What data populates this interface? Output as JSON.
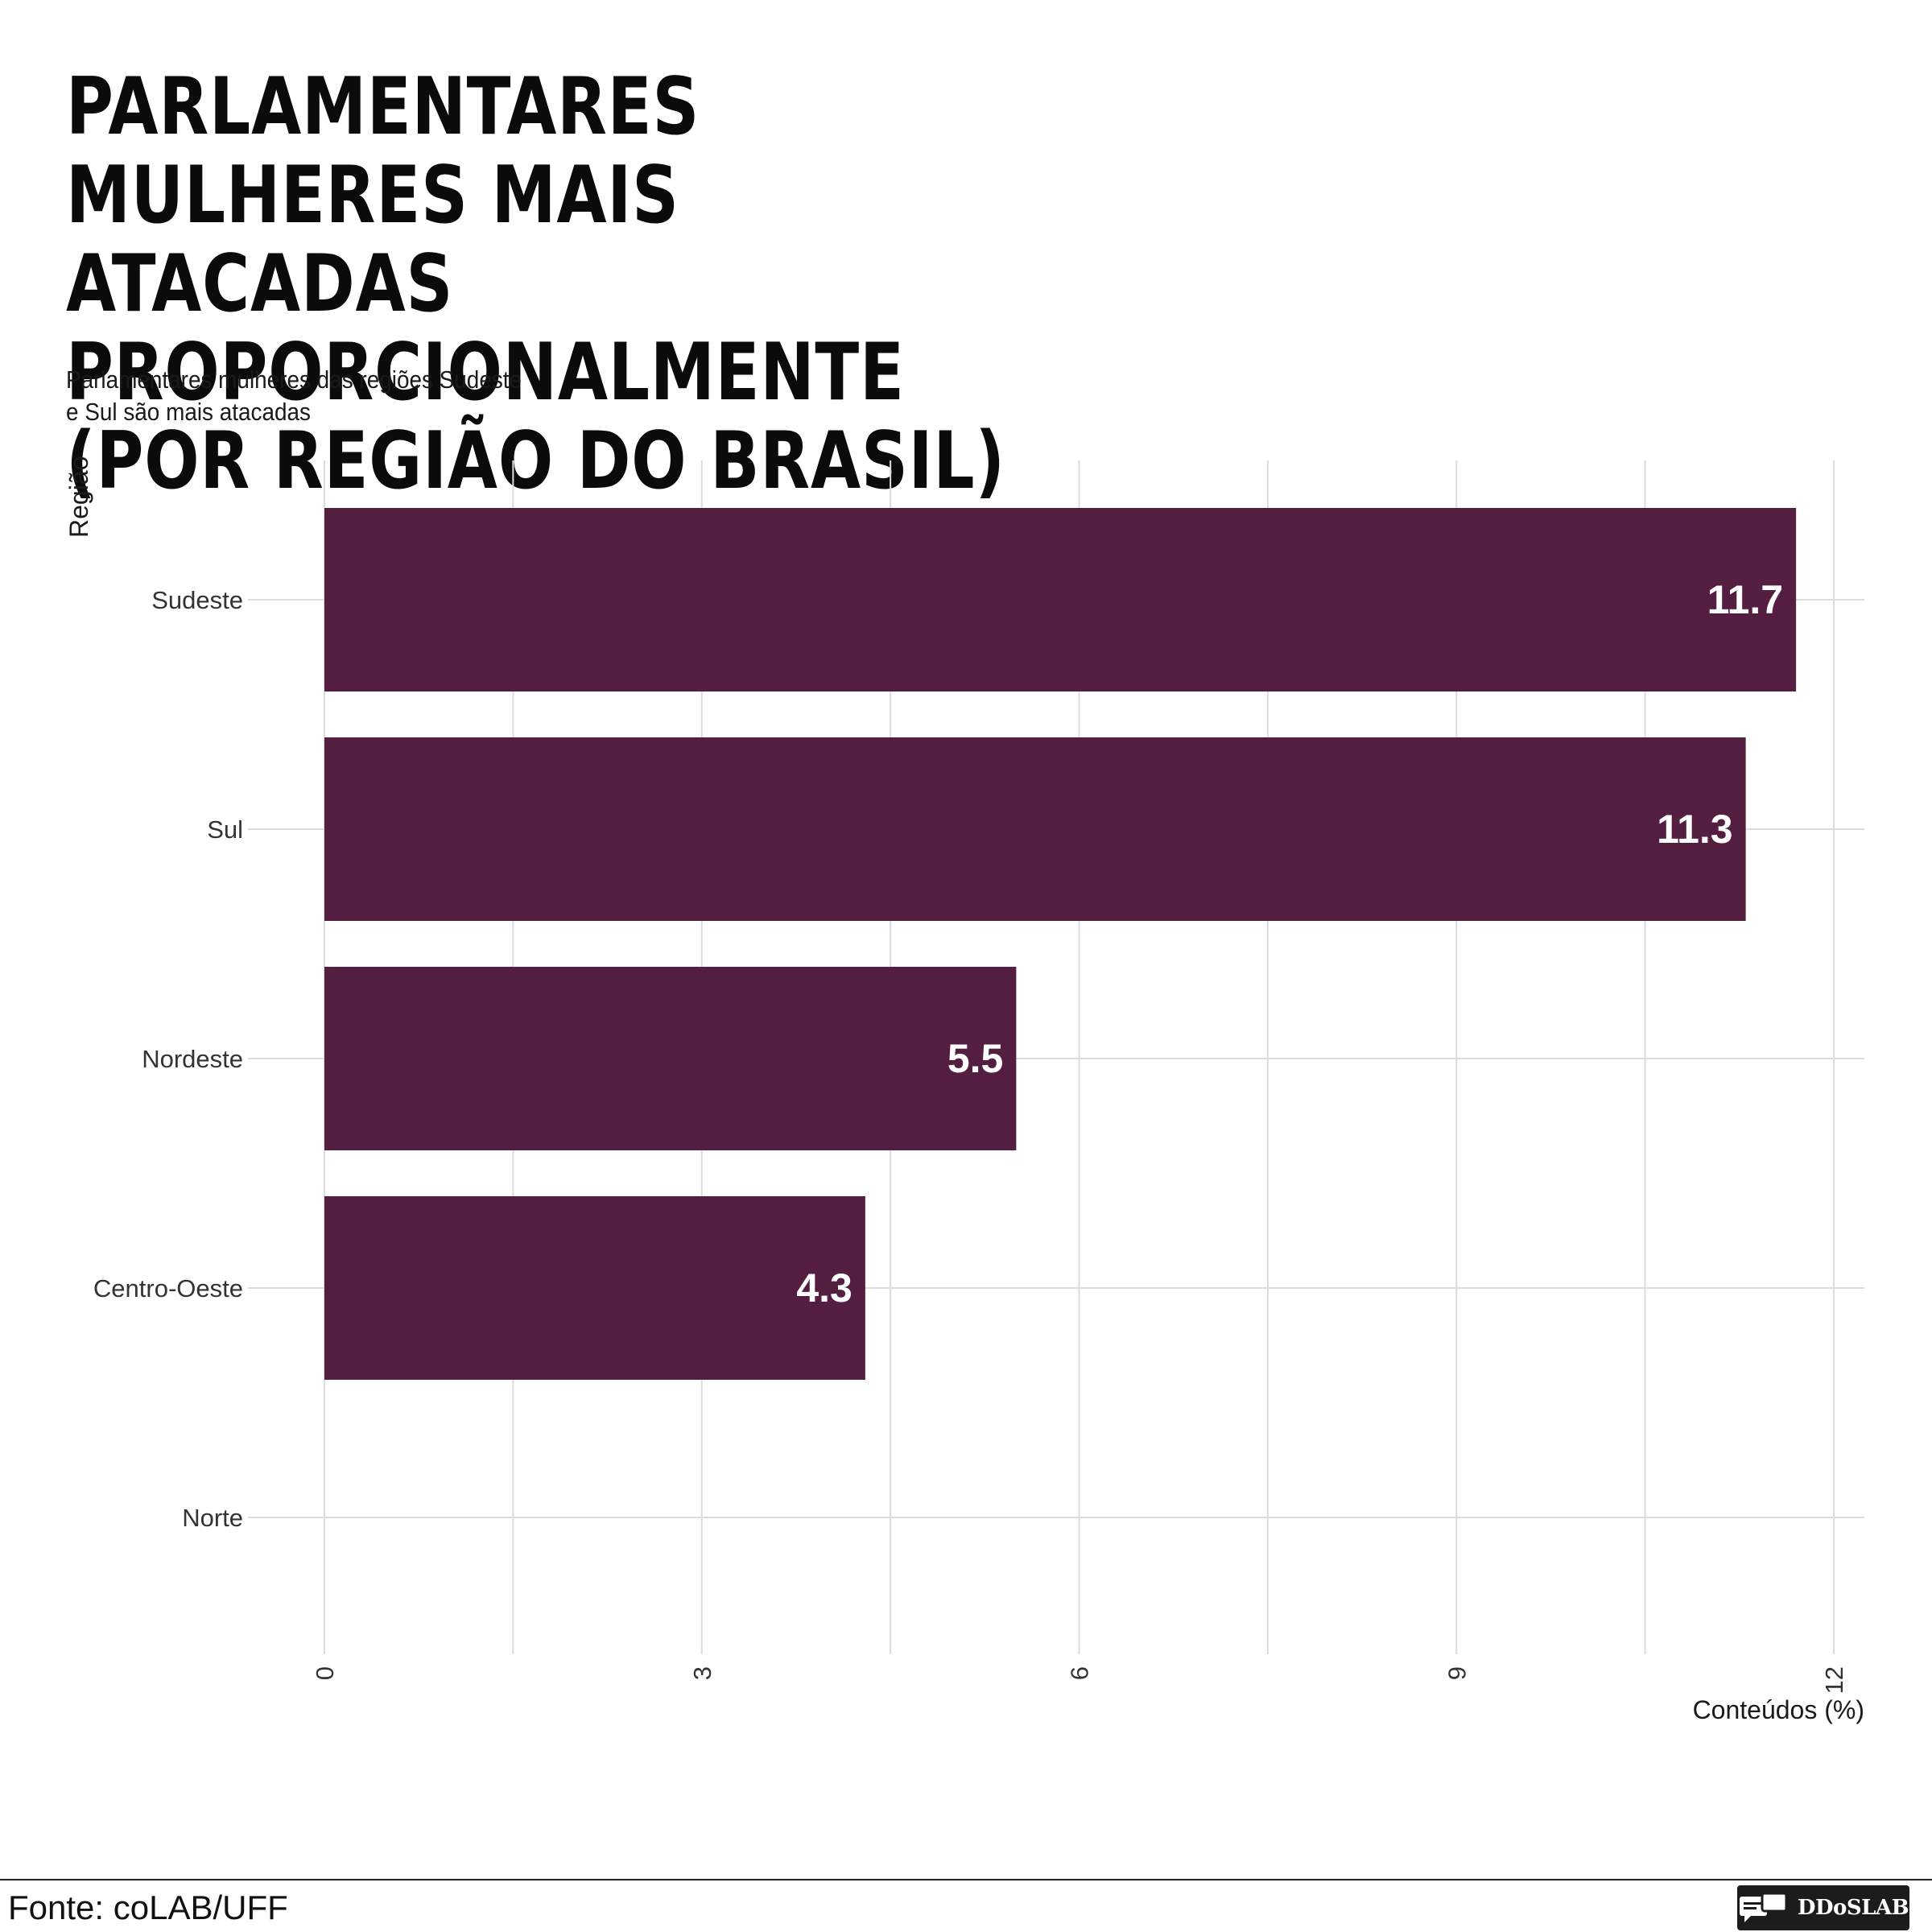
{
  "header": {
    "title_lines": [
      "PARLAMENTARES MULHERES MAIS",
      "ATACADAS PROPORCIONALMENTE",
      "(POR REGIÃO DO BRASIL)"
    ],
    "subtitle_lines": [
      "Parlamentares mulheres das regiões Sudeste",
      "e Sul são mais atacadas"
    ]
  },
  "footer": {
    "source": "Fonte: coLAB/UFF",
    "logo_text": "DDoSLAB",
    "logo_icon": "chat-bubbles-icon"
  },
  "chart_data": {
    "type": "bar",
    "orientation": "horizontal",
    "categories": [
      "Sudeste",
      "Sul",
      "Nordeste",
      "Centro-Oeste",
      "Norte"
    ],
    "values": [
      11.7,
      11.3,
      5.5,
      4.3,
      null
    ],
    "data_labels": [
      "11.7",
      "11.3",
      "5.5",
      "4.3",
      ""
    ],
    "xlabel": "Conteúdos (%)",
    "ylabel": "Região",
    "xlim": [
      0,
      12
    ],
    "x_ticks": [
      0,
      3,
      6,
      9,
      12
    ],
    "grid": true,
    "bar_color": "#541e40",
    "label_color": "#ffffff"
  }
}
